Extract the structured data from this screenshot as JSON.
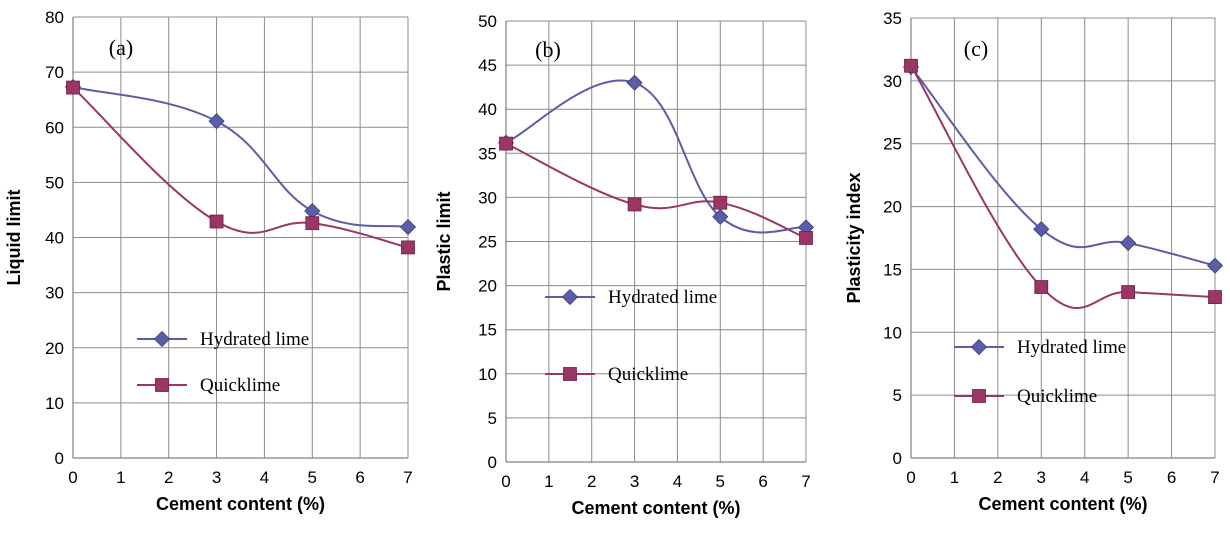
{
  "colors": {
    "hydrated": "#5b5ea6",
    "quick": "#9b3566",
    "grid": "#8c8c8c"
  },
  "chart_data": [
    {
      "type": "line",
      "panel_label": "(a)",
      "xlabel": "Cement content (%)",
      "ylabel": "Liquid limit",
      "xlim": [
        0,
        7
      ],
      "ylim": [
        0,
        80
      ],
      "xticks": [
        "0",
        "1",
        "2",
        "3",
        "4",
        "5",
        "6",
        "7"
      ],
      "yticks": [
        "0",
        "10",
        "20",
        "30",
        "40",
        "50",
        "60",
        "70",
        "80"
      ],
      "grid": true,
      "legend_position": "center-left",
      "series": [
        {
          "name": "Hydrated lime",
          "marker": "diamond-icon",
          "x": [
            0,
            3,
            5,
            7
          ],
          "y": [
            67.3,
            61.1,
            44.8,
            41.9
          ]
        },
        {
          "name": "Quicklime",
          "marker": "square-icon",
          "x": [
            0,
            3,
            5,
            7
          ],
          "y": [
            67.2,
            42.9,
            42.6,
            38.2
          ]
        }
      ]
    },
    {
      "type": "line",
      "panel_label": "(b)",
      "xlabel": "Cement content (%)",
      "ylabel": "Plastic limit",
      "xlim": [
        0,
        7
      ],
      "ylim": [
        0,
        50
      ],
      "xticks": [
        "0",
        "1",
        "2",
        "3",
        "4",
        "5",
        "6",
        "7"
      ],
      "yticks": [
        "0",
        "5",
        "10",
        "15",
        "20",
        "25",
        "30",
        "35",
        "40",
        "45",
        "50"
      ],
      "grid": true,
      "legend_position": "center-left",
      "series": [
        {
          "name": "Hydrated lime",
          "marker": "diamond-icon",
          "x": [
            0,
            3,
            5,
            7
          ],
          "y": [
            36.2,
            43.0,
            27.8,
            26.6
          ]
        },
        {
          "name": "Quicklime",
          "marker": "square-icon",
          "x": [
            0,
            3,
            5,
            7
          ],
          "y": [
            36.1,
            29.2,
            29.4,
            25.4
          ]
        }
      ]
    },
    {
      "type": "line",
      "panel_label": "(c)",
      "xlabel": "Cement content (%)",
      "ylabel": "Plasticity index",
      "xlim": [
        0,
        7
      ],
      "ylim": [
        0,
        35
      ],
      "xticks": [
        "0",
        "1",
        "2",
        "3",
        "4",
        "5",
        "6",
        "7"
      ],
      "yticks": [
        "0",
        "5",
        "10",
        "15",
        "20",
        "25",
        "30",
        "35"
      ],
      "grid": true,
      "legend_position": "center-left",
      "series": [
        {
          "name": "Hydrated lime",
          "marker": "diamond-icon",
          "x": [
            0,
            3,
            5,
            7
          ],
          "y": [
            31.1,
            18.2,
            17.1,
            15.3
          ]
        },
        {
          "name": "Quicklime",
          "marker": "square-icon",
          "x": [
            0,
            3,
            5,
            7
          ],
          "y": [
            31.2,
            13.6,
            13.2,
            12.8
          ]
        }
      ]
    }
  ]
}
